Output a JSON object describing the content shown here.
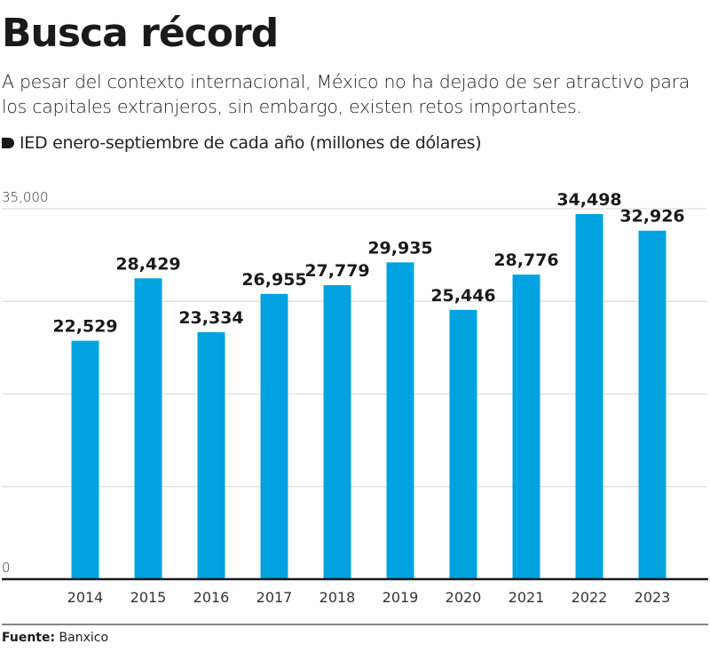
{
  "title": "Busca récord",
  "subtitle": "A pesar del contexto internacional, México no ha dejado de ser atractivo para los capitales extranjeros, sin embargo, existen retos importantes.",
  "source_label": "Fuente:",
  "source_value": "Banxico",
  "colors": {
    "bar": "#00a3e0",
    "text": "#1a1a1a",
    "grid": "#e3e3e3"
  },
  "chart_data": {
    "type": "bar",
    "legend": "IED enero-septiembre de cada año (millones de dólares)",
    "categories": [
      "2014",
      "2015",
      "2016",
      "2017",
      "2018",
      "2019",
      "2020",
      "2021",
      "2022",
      "2023"
    ],
    "values": [
      22529,
      28429,
      23334,
      26955,
      27779,
      29935,
      25446,
      28776,
      34498,
      32926
    ],
    "data_labels": [
      "22,529",
      "28,429",
      "23,334",
      "26,955",
      "27,779",
      "29,935",
      "25,446",
      "28,776",
      "34,498",
      "32,926"
    ],
    "ylim": [
      0,
      35000
    ],
    "y_ticks": [
      {
        "value": 0,
        "label": "0"
      },
      {
        "value": 35000,
        "label": "35,000"
      }
    ],
    "gridlines": [
      8750,
      17500,
      26250,
      35000
    ],
    "grid": true
  }
}
